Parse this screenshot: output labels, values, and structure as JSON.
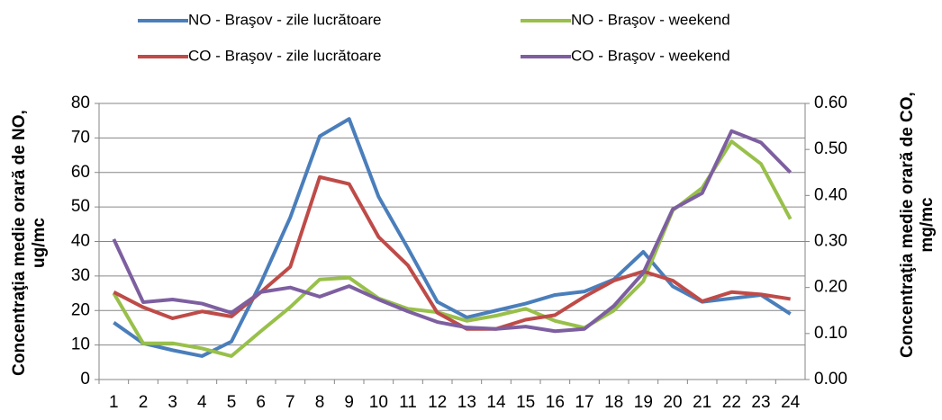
{
  "chart_data": {
    "type": "line",
    "categories": [
      "1",
      "2",
      "3",
      "4",
      "5",
      "6",
      "7",
      "8",
      "9",
      "10",
      "11",
      "12",
      "13",
      "14",
      "15",
      "16",
      "17",
      "18",
      "19",
      "20",
      "21",
      "22",
      "23",
      "24"
    ],
    "ylabel": [
      "Concentraţia medie orară de NO,",
      "ug/mc"
    ],
    "y2label": [
      "Concentraţia medie orară de CO,",
      "mg/mc"
    ],
    "ylim": [
      0,
      80
    ],
    "yticks": [
      0,
      10,
      20,
      30,
      40,
      50,
      60,
      70,
      80
    ],
    "y2lim": [
      0,
      0.6
    ],
    "y2ticks": [
      {
        "value": 0,
        "label": "0.00"
      },
      {
        "value": 0.1,
        "label": "0.10"
      },
      {
        "value": 0.2,
        "label": "0.20"
      },
      {
        "value": 0.3,
        "label": "0.30"
      },
      {
        "value": 0.4,
        "label": "0.40"
      },
      {
        "value": 0.5,
        "label": "0.50"
      },
      {
        "value": 0.6,
        "label": "0.60"
      }
    ],
    "grid": true,
    "series": [
      {
        "name": "NO  - Braşov - zile lucrătoare",
        "color": "#4a7ebb",
        "values": [
          16.5,
          10.5,
          8.5,
          6.8,
          11,
          28,
          47,
          70.5,
          75.5,
          53,
          38,
          22.5,
          18,
          20,
          22,
          24.5,
          25.5,
          29,
          37,
          27,
          22.5,
          23.5,
          24.5,
          19
        ]
      },
      {
        "name": "NO  - Braşov - weekend",
        "color": "#98c04a",
        "values": [
          25,
          10.5,
          10.5,
          9,
          6.8,
          14,
          21,
          29,
          29.5,
          23.5,
          20.5,
          19.5,
          17,
          18.5,
          20.5,
          17,
          15,
          20,
          28.5,
          49,
          55.5,
          69,
          62.5,
          46.5
        ]
      },
      {
        "name": "CO  - Braşov - zile lucrătoare",
        "color": "#be4b48",
        "axis": "y2",
        "values": [
          0.19,
          0.157,
          0.133,
          0.148,
          0.137,
          0.19,
          0.245,
          0.44,
          0.425,
          0.31,
          0.248,
          0.145,
          0.11,
          0.11,
          0.13,
          0.14,
          0.18,
          0.215,
          0.235,
          0.215,
          0.17,
          0.19,
          0.185,
          0.175
        ]
      },
      {
        "name": "CO  - Braşov - weekend",
        "color": "#7d5fa0",
        "axis": "y2",
        "values": [
          0.305,
          0.168,
          0.174,
          0.165,
          0.145,
          0.19,
          0.2,
          0.18,
          0.203,
          0.174,
          0.148,
          0.125,
          0.113,
          0.11,
          0.115,
          0.105,
          0.11,
          0.16,
          0.232,
          0.37,
          0.405,
          0.54,
          0.515,
          0.45
        ]
      }
    ]
  }
}
